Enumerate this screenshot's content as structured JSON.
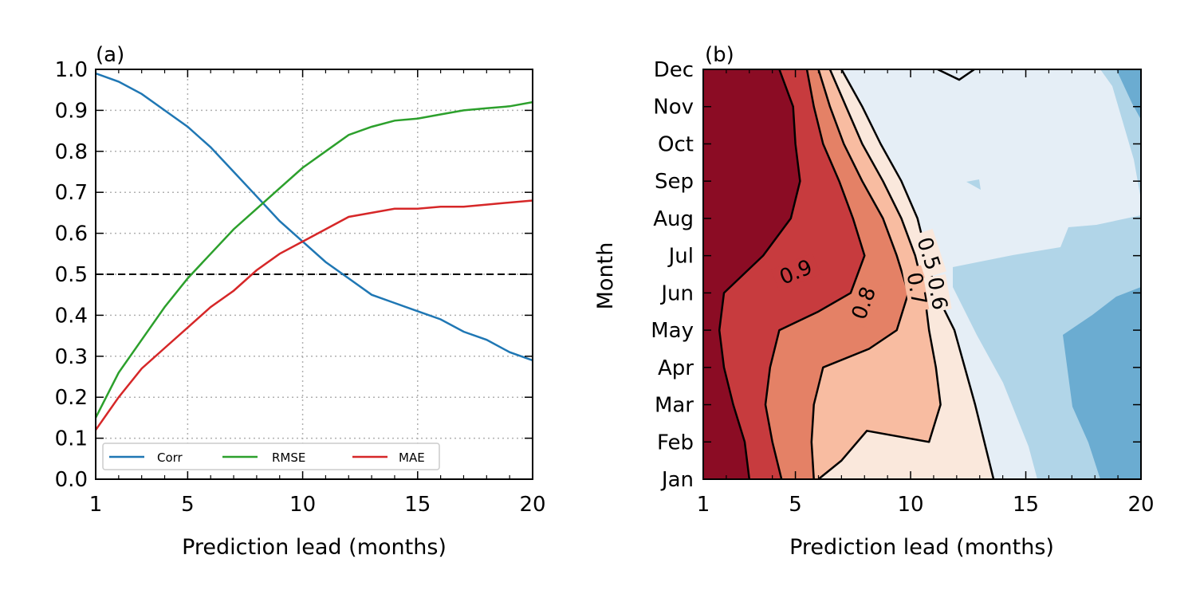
{
  "chart_data": [
    {
      "panel_label": "(a)",
      "type": "line",
      "xlabel": "Prediction lead (months)",
      "ylabel": "",
      "xlim": [
        1,
        20
      ],
      "ylim": [
        0,
        1
      ],
      "xticks": [
        "1",
        "5",
        "10",
        "15",
        "20"
      ],
      "yticks": [
        "0.0",
        "0.1",
        "0.2",
        "0.3",
        "0.4",
        "0.5",
        "0.6",
        "0.7",
        "0.8",
        "0.9",
        "1.0"
      ],
      "grid": true,
      "legend_position": "lower-left",
      "reference_line": 0.5,
      "x": [
        1,
        2,
        3,
        4,
        5,
        6,
        7,
        8,
        9,
        10,
        11,
        12,
        13,
        14,
        15,
        16,
        17,
        18,
        19,
        20
      ],
      "series": [
        {
          "name": "Corr",
          "color": "#1f77b4",
          "values": [
            0.99,
            0.97,
            0.94,
            0.9,
            0.86,
            0.81,
            0.75,
            0.69,
            0.63,
            0.58,
            0.53,
            0.49,
            0.45,
            0.43,
            0.41,
            0.39,
            0.36,
            0.34,
            0.31,
            0.29
          ]
        },
        {
          "name": "RMSE",
          "color": "#2ca02c",
          "values": [
            0.15,
            0.26,
            0.34,
            0.42,
            0.49,
            0.55,
            0.61,
            0.66,
            0.71,
            0.76,
            0.8,
            0.84,
            0.86,
            0.875,
            0.88,
            0.89,
            0.9,
            0.905,
            0.91,
            0.92
          ]
        },
        {
          "name": "MAE",
          "color": "#d62728",
          "values": [
            0.12,
            0.2,
            0.27,
            0.32,
            0.37,
            0.42,
            0.46,
            0.51,
            0.55,
            0.58,
            0.61,
            0.64,
            0.65,
            0.66,
            0.66,
            0.665,
            0.665,
            0.67,
            0.675,
            0.68
          ]
        }
      ]
    },
    {
      "panel_label": "(b)",
      "type": "contour",
      "xlabel": "Prediction lead (months)",
      "ylabel": "Month",
      "xlim": [
        1,
        20
      ],
      "xticks": [
        "1",
        "5",
        "10",
        "15",
        "20"
      ],
      "months": [
        "Jan",
        "Feb",
        "Mar",
        "Apr",
        "May",
        "Jun",
        "Jul",
        "Aug",
        "Sep",
        "Oct",
        "Nov",
        "Dec"
      ],
      "levels": [
        0.9,
        0.8,
        0.7,
        0.6,
        0.5
      ],
      "contour_labels": [
        "0.9",
        "0.8",
        "0.7",
        "0.6",
        "0.5"
      ],
      "colors": {
        "above_0.9": "#8b0c24",
        "0.8_to_0.9": "#c73b3e",
        "0.7_to_0.8": "#e48166",
        "0.6_to_0.7": "#f8bca1",
        "0.5_to_0.6": "#fae8dc",
        "0.4_to_0.5": "#e5eef6",
        "0.3_to_0.4": "#b1d5e8",
        "0.2_to_0.3": "#6bacd1"
      },
      "contours": {
        "0.9": [
          [
            3.0,
            1
          ],
          [
            2.8,
            2
          ],
          [
            2.3,
            3
          ],
          [
            1.9,
            4
          ],
          [
            1.7,
            5
          ],
          [
            1.9,
            6
          ],
          [
            3.6,
            7
          ],
          [
            4.8,
            8
          ],
          [
            5.2,
            9
          ],
          [
            5.0,
            10
          ],
          [
            4.9,
            11
          ],
          [
            4.3,
            12
          ]
        ],
        "0.8": [
          [
            4.4,
            1
          ],
          [
            4.0,
            2
          ],
          [
            3.7,
            3
          ],
          [
            3.9,
            4
          ],
          [
            4.3,
            5
          ],
          [
            6.0,
            5.5
          ],
          [
            7.4,
            6
          ],
          [
            8.0,
            7
          ],
          [
            7.5,
            8
          ],
          [
            6.9,
            9
          ],
          [
            6.2,
            10
          ],
          [
            5.8,
            11
          ],
          [
            5.5,
            12
          ]
        ],
        "0.7": [
          [
            5.8,
            1
          ],
          [
            5.7,
            2
          ],
          [
            5.8,
            3
          ],
          [
            6.2,
            4
          ],
          [
            8.2,
            4.5
          ],
          [
            9.4,
            5
          ],
          [
            9.9,
            6
          ],
          [
            9.4,
            7
          ],
          [
            8.8,
            8
          ],
          [
            7.9,
            9
          ],
          [
            7.1,
            10
          ],
          [
            6.5,
            11
          ],
          [
            6.0,
            12
          ]
        ],
        "0.6": [
          [
            7.0,
            1.5
          ],
          [
            8.1,
            2.3
          ],
          [
            10.8,
            2
          ],
          [
            11.3,
            3
          ],
          [
            11.1,
            4
          ],
          [
            10.8,
            5
          ],
          [
            10.6,
            6
          ],
          [
            10.2,
            7
          ],
          [
            9.6,
            8
          ],
          [
            8.8,
            9
          ],
          [
            7.9,
            10
          ],
          [
            7.2,
            11
          ],
          [
            6.5,
            12
          ]
        ],
        "0.5": [
          [
            13.6,
            1
          ],
          [
            12.8,
            3
          ],
          [
            11.9,
            5
          ],
          [
            11.1,
            6
          ],
          [
            10.7,
            7
          ],
          [
            10.3,
            8
          ],
          [
            9.6,
            9
          ],
          [
            8.7,
            10
          ],
          [
            7.9,
            11
          ],
          [
            7.0,
            12
          ]
        ]
      }
    }
  ]
}
